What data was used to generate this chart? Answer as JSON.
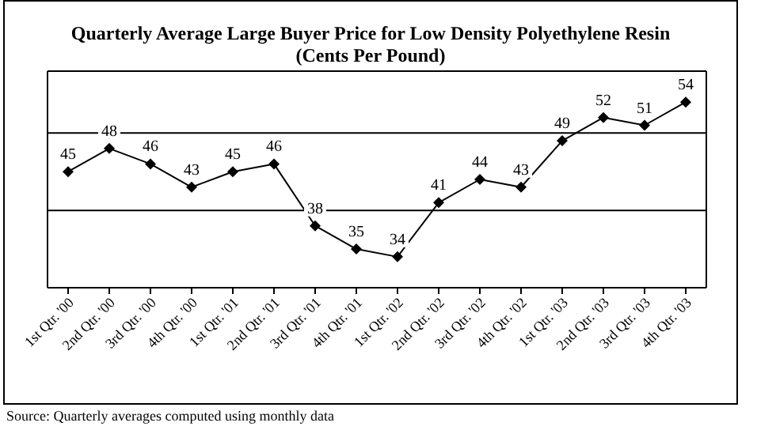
{
  "chart_data": {
    "type": "line",
    "title": "Quarterly Average Large Buyer Price for Low Density Polyethylene Resin",
    "subtitle": "(Cents Per Pound)",
    "categories": [
      "1st Qtr. '00",
      "2nd Qtr. '00",
      "3rd Qtr. '00",
      "4th Qtr. '00",
      "1st Qtr. '01",
      "2nd Qtr. '01",
      "3rd Qtr. '01",
      "4th Qtr. '01",
      "1st Qtr. '02",
      "2nd Qtr. '02",
      "3rd Qtr. '02",
      "4th Qtr. '02",
      "1st Qtr. '03",
      "2nd Qtr. '03",
      "3rd Qtr. '03",
      "4th Qtr. '03"
    ],
    "series": [
      {
        "color": "#000000",
        "values": [
          45,
          48,
          46,
          43,
          45,
          46,
          38,
          35,
          34,
          41,
          44,
          43,
          49,
          52,
          51,
          54
        ]
      }
    ],
    "ylim": [
      30,
      58
    ],
    "yticks": [
      {
        "value": 40,
        "label": null
      },
      {
        "value": 50,
        "label": null
      }
    ],
    "tick_labels": "x",
    "grid": "y",
    "legend": false,
    "data_labels": true,
    "marker": "diamond",
    "line_style": "solid",
    "annotations": [
      "Source:  Quarterly averages computed using monthly data"
    ]
  }
}
